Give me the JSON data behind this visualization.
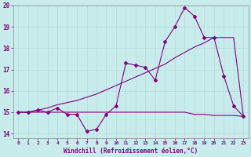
{
  "xlabel": "Windchill (Refroidissement éolien,°C)",
  "background_color": "#c8ecec",
  "line_color": "#800080",
  "grid_color": "#aadddd",
  "x_hours": [
    0,
    1,
    2,
    3,
    4,
    5,
    6,
    7,
    8,
    9,
    10,
    11,
    12,
    13,
    14,
    15,
    16,
    17,
    18,
    19,
    20,
    21,
    22,
    23
  ],
  "series1": [
    15.0,
    15.0,
    15.1,
    15.0,
    15.2,
    14.9,
    14.9,
    14.1,
    14.2,
    14.9,
    15.3,
    17.3,
    17.2,
    17.1,
    16.5,
    18.3,
    19.0,
    19.9,
    19.5,
    18.5,
    18.5,
    16.7,
    15.3,
    14.8
  ],
  "series2": [
    15.0,
    15.0,
    15.0,
    15.0,
    15.0,
    15.0,
    15.0,
    15.0,
    15.0,
    15.0,
    15.0,
    15.0,
    15.0,
    15.0,
    15.0,
    15.0,
    15.0,
    15.0,
    14.9,
    14.9,
    14.85,
    14.85,
    14.85,
    14.8
  ],
  "series3": [
    15.0,
    15.0,
    15.1,
    15.2,
    15.35,
    15.45,
    15.55,
    15.7,
    15.85,
    16.05,
    16.25,
    16.45,
    16.65,
    16.85,
    17.05,
    17.25,
    17.55,
    17.8,
    18.05,
    18.25,
    18.5,
    18.5,
    18.5,
    14.8
  ],
  "ylim": [
    13.8,
    20.0
  ],
  "ytick_locs": [
    14,
    15,
    16,
    17,
    18,
    19,
    20
  ],
  "ytick_labels": [
    "14",
    "15",
    "16",
    "17",
    "18",
    "19",
    "20"
  ],
  "xticks": [
    0,
    1,
    2,
    3,
    4,
    5,
    6,
    7,
    8,
    9,
    10,
    11,
    12,
    13,
    14,
    15,
    16,
    17,
    18,
    19,
    20,
    21,
    22,
    23
  ],
  "marker_style": "D",
  "marker_size": 2.0,
  "line_width": 0.8
}
